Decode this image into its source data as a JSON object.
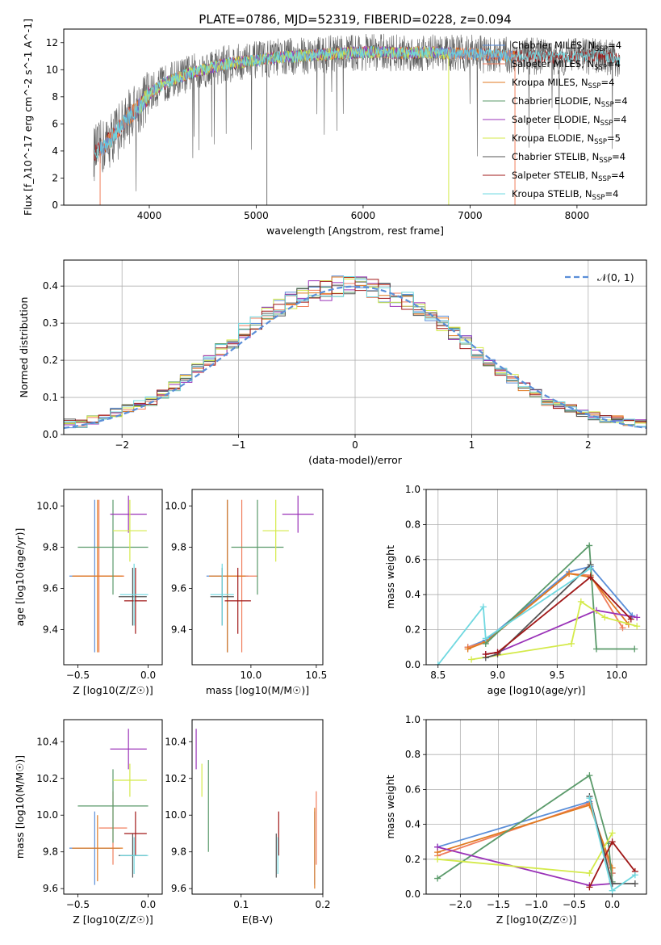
{
  "figure_title": "PLATE=0786, MJD=52319, FIBERID=0228, z=0.094",
  "colors": {
    "Chabrier MILES": "#5a8ed8",
    "Salpeter MILES": "#f07e5c",
    "Kroupa MILES": "#e07a20",
    "Chabrier ELODIE": "#5a9a6a",
    "Salpeter ELODIE": "#9a32b8",
    "Kroupa ELODIE": "#d4ea4a",
    "Chabrier STELIB": "#555555",
    "Salpeter STELIB": "#a01818",
    "Kroupa STELIB": "#6fd8e0"
  },
  "chart_data": [
    {
      "id": "spectrum",
      "type": "line",
      "title": "PLATE=0786, MJD=52319, FIBERID=0228, z=0.094",
      "xlabel": "wavelength [Angstrom, rest frame]",
      "ylabel": "Flux [f_λ10^-17 erg cm^-2 s^-1 A^-1]",
      "xlim": [
        3200,
        8650
      ],
      "ylim": [
        0,
        13
      ],
      "xticks": [
        "4000",
        "5000",
        "6000",
        "7000",
        "8000"
      ],
      "yticks": [
        "0",
        "2",
        "4",
        "6",
        "8",
        "10",
        "12"
      ],
      "grid": false,
      "legend_position": "right",
      "legend": [
        {
          "name": "Chabrier MILES",
          "nssp": "4"
        },
        {
          "name": "Salpeter MILES",
          "nssp": "4"
        },
        {
          "name": "Kroupa MILES",
          "nssp": "4"
        },
        {
          "name": "Chabrier ELODIE",
          "nssp": "4"
        },
        {
          "name": "Salpeter ELODIE",
          "nssp": "4"
        },
        {
          "name": "Kroupa ELODIE",
          "nssp": "5"
        },
        {
          "name": "Chabrier STELIB",
          "nssp": "4"
        },
        {
          "name": "Salpeter STELIB",
          "nssp": "4"
        },
        {
          "name": "Kroupa STELIB",
          "nssp": "4"
        }
      ],
      "continuum_x": [
        3480,
        3600,
        3700,
        3800,
        3900,
        4000,
        4100,
        4200,
        4300,
        4400,
        4500,
        4600,
        4700,
        4800,
        4900,
        5000,
        5200,
        5400,
        5600,
        5800,
        6000,
        6200,
        6400,
        6600,
        6800,
        7000,
        7200,
        7400,
        7600,
        7800,
        8000,
        8200,
        8400
      ],
      "continuum_y": [
        3.8,
        4.5,
        5.5,
        6.5,
        7.2,
        8.2,
        8.8,
        9.2,
        9.5,
        9.8,
        10.0,
        10.2,
        10.4,
        10.5,
        10.6,
        10.7,
        10.9,
        11.0,
        11.1,
        11.2,
        11.3,
        11.3,
        11.2,
        11.3,
        11.2,
        11.2,
        11.1,
        11.0,
        11.0,
        10.9,
        11.0,
        11.0,
        10.8
      ]
    },
    {
      "id": "residuals",
      "type": "bar",
      "xlabel": "(data-model)/error",
      "ylabel": "Normed distribution",
      "xlim": [
        -2.5,
        2.5
      ],
      "ylim": [
        0,
        0.47
      ],
      "xticks": [
        "−2",
        "−1",
        "0",
        "1",
        "2"
      ],
      "yticks": [
        "0.0",
        "0.1",
        "0.2",
        "0.3",
        "0.4"
      ],
      "grid": true,
      "legend_label": "𝒩(0, 1)",
      "legend_position": "top-right",
      "bin_width": 0.1,
      "x": [
        -2.45,
        -2.35,
        -2.25,
        -2.15,
        -2.05,
        -1.95,
        -1.85,
        -1.75,
        -1.65,
        -1.55,
        -1.45,
        -1.35,
        -1.25,
        -1.15,
        -1.05,
        -0.95,
        -0.85,
        -0.75,
        -0.65,
        -0.55,
        -0.45,
        -0.35,
        -0.25,
        -0.15,
        -0.05,
        0.05,
        0.15,
        0.25,
        0.35,
        0.45,
        0.55,
        0.65,
        0.75,
        0.85,
        0.95,
        1.05,
        1.15,
        1.25,
        1.35,
        1.45,
        1.55,
        1.65,
        1.75,
        1.85,
        1.95,
        2.05,
        2.15,
        2.25,
        2.35,
        2.45
      ],
      "mean_values": [
        0.03,
        0.03,
        0.04,
        0.05,
        0.06,
        0.07,
        0.08,
        0.09,
        0.11,
        0.13,
        0.15,
        0.18,
        0.2,
        0.23,
        0.25,
        0.28,
        0.3,
        0.32,
        0.34,
        0.36,
        0.37,
        0.39,
        0.39,
        0.4,
        0.4,
        0.4,
        0.39,
        0.38,
        0.37,
        0.36,
        0.34,
        0.32,
        0.3,
        0.27,
        0.25,
        0.22,
        0.2,
        0.17,
        0.15,
        0.13,
        0.11,
        0.09,
        0.08,
        0.07,
        0.06,
        0.05,
        0.04,
        0.04,
        0.03,
        0.03
      ]
    },
    {
      "id": "age_vs_Z",
      "type": "scatter",
      "xlabel": "Z [log10(Z/Z☉)]",
      "ylabel": "age [log10(age/yr)]",
      "xlim": [
        -0.6,
        0.1
      ],
      "ylim": [
        9.23,
        10.08
      ],
      "xticks": [
        "−0.5",
        "0.0"
      ],
      "yticks": [
        "9.4",
        "9.6",
        "9.8",
        "10.0"
      ],
      "grid": false,
      "points": [
        {
          "series": "Chabrier MILES",
          "x": -0.38,
          "xerr": 0.18,
          "y": 9.66,
          "yerr": 0.37
        },
        {
          "series": "Salpeter MILES",
          "x": -0.35,
          "xerr": 0.18,
          "y": 9.66,
          "yerr": 0.37
        },
        {
          "series": "Kroupa MILES",
          "x": -0.36,
          "xerr": 0.18,
          "y": 9.66,
          "yerr": 0.37
        },
        {
          "series": "Chabrier ELODIE",
          "x": -0.25,
          "xerr": 0.25,
          "y": 9.8,
          "yerr": 0.23
        },
        {
          "series": "Salpeter ELODIE",
          "x": -0.14,
          "xerr": 0.13,
          "y": 9.96,
          "yerr": 0.09
        },
        {
          "series": "Kroupa ELODIE",
          "x": -0.13,
          "xerr": 0.12,
          "y": 9.88,
          "yerr": 0.15
        },
        {
          "series": "Chabrier STELIB",
          "x": -0.11,
          "xerr": 0.1,
          "y": 9.56,
          "yerr": 0.14
        },
        {
          "series": "Salpeter STELIB",
          "x": -0.09,
          "xerr": 0.08,
          "y": 9.54,
          "yerr": 0.16
        },
        {
          "series": "Kroupa STELIB",
          "x": -0.1,
          "xerr": 0.1,
          "y": 9.57,
          "yerr": 0.15
        }
      ]
    },
    {
      "id": "age_vs_mass",
      "type": "scatter",
      "xlabel": "mass [log10(M/M☉)]",
      "ylabel": "",
      "xlim": [
        9.55,
        10.55
      ],
      "ylim": [
        9.23,
        10.08
      ],
      "xticks": [
        "10.0",
        "10.5"
      ],
      "yticks": [
        "9.4",
        "9.6",
        "9.8",
        "10.0"
      ],
      "grid": false,
      "points": [
        {
          "series": "Chabrier MILES",
          "x": 9.82,
          "xerr": 0.16,
          "y": 9.66,
          "yerr": 0.37
        },
        {
          "series": "Salpeter MILES",
          "x": 9.93,
          "xerr": 0.12,
          "y": 9.66,
          "yerr": 0.37
        },
        {
          "series": "Kroupa MILES",
          "x": 9.82,
          "xerr": 0.14,
          "y": 9.66,
          "yerr": 0.37
        },
        {
          "series": "Chabrier ELODIE",
          "x": 10.05,
          "xerr": 0.2,
          "y": 9.8,
          "yerr": 0.23
        },
        {
          "series": "Salpeter ELODIE",
          "x": 10.36,
          "xerr": 0.12,
          "y": 9.96,
          "yerr": 0.09
        },
        {
          "series": "Kroupa ELODIE",
          "x": 10.19,
          "xerr": 0.1,
          "y": 9.88,
          "yerr": 0.15
        },
        {
          "series": "Chabrier STELIB",
          "x": 9.78,
          "xerr": 0.09,
          "y": 9.56,
          "yerr": 0.14
        },
        {
          "series": "Salpeter STELIB",
          "x": 9.9,
          "xerr": 0.1,
          "y": 9.54,
          "yerr": 0.16
        },
        {
          "series": "Kroupa STELIB",
          "x": 9.78,
          "xerr": 0.09,
          "y": 9.57,
          "yerr": 0.15
        }
      ]
    },
    {
      "id": "weight_vs_age",
      "type": "line",
      "xlabel": "age [log10(age/yr)]",
      "ylabel": "mass weight",
      "xlim": [
        8.4,
        10.25
      ],
      "ylim": [
        0,
        1
      ],
      "xticks": [
        "8.5",
        "9.0",
        "9.5",
        "10.0"
      ],
      "yticks": [
        "0.0",
        "0.2",
        "0.4",
        "0.6",
        "0.8",
        "1.0"
      ],
      "grid": true,
      "series": [
        {
          "name": "Chabrier MILES",
          "x": [
            8.75,
            8.9,
            9.6,
            9.78,
            10.13
          ],
          "y": [
            0.1,
            0.14,
            0.53,
            0.56,
            0.28
          ]
        },
        {
          "name": "Salpeter MILES",
          "x": [
            8.75,
            8.9,
            9.6,
            9.78,
            10.05
          ],
          "y": [
            0.1,
            0.13,
            0.52,
            0.51,
            0.21
          ]
        },
        {
          "name": "Kroupa MILES",
          "x": [
            8.75,
            8.9,
            9.6,
            9.78,
            10.1
          ],
          "y": [
            0.09,
            0.13,
            0.52,
            0.5,
            0.23
          ]
        },
        {
          "name": "Chabrier ELODIE",
          "x": [
            8.9,
            9.77,
            9.83,
            10.15
          ],
          "y": [
            0.12,
            0.68,
            0.09,
            0.09
          ]
        },
        {
          "name": "Salpeter ELODIE",
          "x": [
            8.9,
            9.0,
            9.83,
            10.17
          ],
          "y": [
            0.06,
            0.07,
            0.31,
            0.27
          ]
        },
        {
          "name": "Kroupa ELODIE",
          "x": [
            8.78,
            9.62,
            9.7,
            9.9,
            10.17
          ],
          "y": [
            0.03,
            0.12,
            0.36,
            0.27,
            0.22
          ]
        },
        {
          "name": "Chabrier STELIB",
          "x": [
            8.9,
            9.0,
            9.78
          ],
          "y": [
            0.04,
            0.06,
            0.57
          ]
        },
        {
          "name": "Salpeter STELIB",
          "x": [
            8.9,
            9.0,
            9.78,
            10.12
          ],
          "y": [
            0.06,
            0.07,
            0.5,
            0.26
          ]
        },
        {
          "name": "Kroupa STELIB",
          "x": [
            8.5,
            8.88,
            8.9,
            9.78
          ],
          "y": [
            0.0,
            0.33,
            0.15,
            0.55
          ]
        }
      ]
    },
    {
      "id": "mass_vs_Z",
      "type": "scatter",
      "xlabel": "Z [log10(Z/Z☉)]",
      "ylabel": "mass [log10(M/M☉)]",
      "xlim": [
        -0.6,
        0.1
      ],
      "ylim": [
        9.57,
        10.52
      ],
      "xticks": [
        "−0.5",
        "0.0"
      ],
      "yticks": [
        "9.6",
        "9.8",
        "10.0",
        "10.2",
        "10.4"
      ],
      "grid": false,
      "points": [
        {
          "series": "Chabrier MILES",
          "x": -0.38,
          "xerr": 0.18,
          "y": 9.82,
          "yerr": 0.2
        },
        {
          "series": "Salpeter MILES",
          "x": -0.25,
          "xerr": 0.1,
          "y": 9.93,
          "yerr": 0.2
        },
        {
          "series": "Kroupa MILES",
          "x": -0.36,
          "xerr": 0.18,
          "y": 9.82,
          "yerr": 0.18
        },
        {
          "series": "Chabrier ELODIE",
          "x": -0.25,
          "xerr": 0.25,
          "y": 10.05,
          "yerr": 0.2
        },
        {
          "series": "Salpeter ELODIE",
          "x": -0.14,
          "xerr": 0.13,
          "y": 10.36,
          "yerr": 0.11
        },
        {
          "series": "Kroupa ELODIE",
          "x": -0.13,
          "xerr": 0.12,
          "y": 10.19,
          "yerr": 0.09
        },
        {
          "series": "Chabrier STELIB",
          "x": -0.11,
          "xerr": 0.1,
          "y": 9.78,
          "yerr": 0.12
        },
        {
          "series": "Salpeter STELIB",
          "x": -0.09,
          "xerr": 0.08,
          "y": 9.9,
          "yerr": 0.12
        },
        {
          "series": "Kroupa STELIB",
          "x": -0.1,
          "xerr": 0.1,
          "y": 9.78,
          "yerr": 0.1
        }
      ]
    },
    {
      "id": "mass_vs_ebv",
      "type": "scatter",
      "xlabel": "E(B-V)",
      "ylabel": "",
      "xlim": [
        0.04,
        0.2
      ],
      "ylim": [
        9.57,
        10.52
      ],
      "xticks": [
        "0.1",
        "0.2"
      ],
      "yticks": [
        "9.6",
        "9.8",
        "10.0",
        "10.2",
        "10.4"
      ],
      "grid": false,
      "points": [
        {
          "series": "Chabrier MILES",
          "x": 0.19,
          "y": 9.82,
          "yerr": 0.2
        },
        {
          "series": "Salpeter MILES",
          "x": 0.192,
          "y": 9.93,
          "yerr": 0.2
        },
        {
          "series": "Kroupa MILES",
          "x": 0.19,
          "y": 9.82,
          "yerr": 0.22
        },
        {
          "series": "Chabrier ELODIE",
          "x": 0.06,
          "y": 10.05,
          "yerr": 0.25
        },
        {
          "series": "Salpeter ELODIE",
          "x": 0.045,
          "y": 10.36,
          "yerr": 0.11
        },
        {
          "series": "Kroupa ELODIE",
          "x": 0.052,
          "y": 10.19,
          "yerr": 0.09
        },
        {
          "series": "Chabrier STELIB",
          "x": 0.143,
          "y": 9.78,
          "yerr": 0.12
        },
        {
          "series": "Salpeter STELIB",
          "x": 0.146,
          "y": 9.9,
          "yerr": 0.12
        },
        {
          "series": "Kroupa STELIB",
          "x": 0.145,
          "y": 9.78,
          "yerr": 0.1
        }
      ]
    },
    {
      "id": "weight_vs_Z",
      "type": "line",
      "xlabel": "Z [log10(Z/Z☉)]",
      "ylabel": "mass weight",
      "xlim": [
        -2.45,
        0.45
      ],
      "ylim": [
        0,
        1
      ],
      "xticks": [
        "−2.0",
        "−1.5",
        "−1.0",
        "−0.5",
        "0.0"
      ],
      "yticks": [
        "0.0",
        "0.2",
        "0.4",
        "0.6",
        "0.8",
        "1.0"
      ],
      "grid": true,
      "series": [
        {
          "name": "Chabrier MILES",
          "x": [
            -2.3,
            -0.3,
            0.0
          ],
          "y": [
            0.27,
            0.53,
            0.12
          ]
        },
        {
          "name": "Salpeter MILES",
          "x": [
            -2.3,
            -0.3,
            0.0
          ],
          "y": [
            0.22,
            0.52,
            0.12
          ]
        },
        {
          "name": "Kroupa MILES",
          "x": [
            -2.3,
            -0.3,
            0.0
          ],
          "y": [
            0.24,
            0.51,
            0.15
          ]
        },
        {
          "name": "Chabrier ELODIE",
          "x": [
            -2.3,
            -0.3,
            -0.05,
            0.0
          ],
          "y": [
            0.09,
            0.68,
            0.29,
            0.07
          ]
        },
        {
          "name": "Salpeter ELODIE",
          "x": [
            -2.3,
            -0.3,
            0.0
          ],
          "y": [
            0.27,
            0.05,
            0.06
          ]
        },
        {
          "name": "Kroupa ELODIE",
          "x": [
            -2.3,
            -0.3,
            0.0
          ],
          "y": [
            0.2,
            0.12,
            0.35
          ]
        },
        {
          "name": "Chabrier STELIB",
          "x": [
            -0.3,
            0.0,
            0.3
          ],
          "y": [
            0.56,
            0.06,
            0.06
          ]
        },
        {
          "name": "Salpeter STELIB",
          "x": [
            -0.3,
            0.0,
            0.3
          ],
          "y": [
            0.04,
            0.3,
            0.13
          ]
        },
        {
          "name": "Kroupa STELIB",
          "x": [
            -0.3,
            0.0,
            0.3
          ],
          "y": [
            0.55,
            0.02,
            0.11
          ]
        }
      ]
    }
  ]
}
